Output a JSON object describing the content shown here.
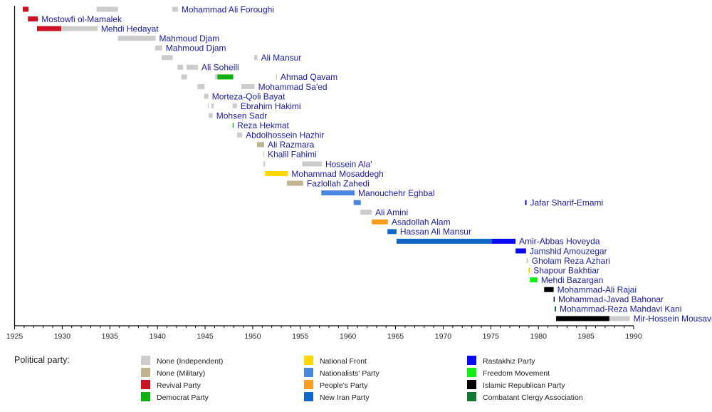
{
  "chart_data": {
    "type": "timeline",
    "xlim": [
      1925,
      1990
    ],
    "x_ticks": [
      1925,
      1930,
      1935,
      1940,
      1945,
      1950,
      1955,
      1960,
      1965,
      1970,
      1975,
      1980,
      1985,
      1990
    ],
    "minor_tick_step": 1,
    "legend_title": "Political party:",
    "legend_placement": "bottom",
    "parties": [
      {
        "key": "ind",
        "name": "None (Independent)",
        "color": "#cccccc"
      },
      {
        "key": "mil",
        "name": "None (Military)",
        "color": "#c2b28f"
      },
      {
        "key": "rev",
        "name": "Revival Party",
        "color": "#cc1122"
      },
      {
        "key": "dem",
        "name": "Democrat Party",
        "color": "#11b011"
      },
      {
        "key": "nf",
        "name": "National Front",
        "color": "#ffd700"
      },
      {
        "key": "nat",
        "name": "Nationalists' Party",
        "color": "#4a86e0"
      },
      {
        "key": "ppl",
        "name": "People's Party",
        "color": "#ff9d22"
      },
      {
        "key": "nip",
        "name": "New Iran Party",
        "color": "#1166c8"
      },
      {
        "key": "ras",
        "name": "Rastakhiz Party",
        "color": "#0a0aee"
      },
      {
        "key": "fm",
        "name": "Freedom Movement",
        "color": "#11ee11"
      },
      {
        "key": "irp",
        "name": "Islamic Republican Party",
        "color": "#000000"
      },
      {
        "key": "cca",
        "name": "Combatant Clergy Association",
        "color": "#117733"
      }
    ],
    "rows": [
      {
        "name": "Mohammad Ali Foroughi",
        "terms": [
          [
            1925.86,
            1926.46,
            "rev"
          ],
          [
            1933.6,
            1935.85,
            "ind"
          ],
          [
            1941.55,
            1942.15,
            "ind"
          ]
        ]
      },
      {
        "name": "Mostowfi ol-Mamalek",
        "terms": [
          [
            1926.4,
            1927.45,
            "rev"
          ]
        ]
      },
      {
        "name": "Mehdi Hedayat",
        "terms": [
          [
            1927.35,
            1929.9,
            "rev"
          ],
          [
            1929.9,
            1933.7,
            "ind"
          ]
        ]
      },
      {
        "name": "Mahmoud Djam",
        "terms": [
          [
            1935.85,
            1939.8,
            "ind"
          ]
        ]
      },
      {
        "name": "Mahmoud Djam",
        "terms": [
          [
            1939.75,
            1940.5,
            "ind"
          ]
        ]
      },
      {
        "name": "Ali Mansur",
        "terms": [
          [
            1940.45,
            1941.6,
            "ind"
          ],
          [
            1950.15,
            1950.5,
            "ind"
          ]
        ]
      },
      {
        "name": "Ali Soheili",
        "terms": [
          [
            1942.1,
            1942.7,
            "ind"
          ],
          [
            1943.05,
            1944.25,
            "ind"
          ]
        ]
      },
      {
        "name": "Ahmad Qavam",
        "terms": [
          [
            1942.5,
            1943.1,
            "ind"
          ],
          [
            1946.05,
            1946.3,
            "ind"
          ],
          [
            1946.3,
            1947.95,
            "dem"
          ],
          [
            1952.45,
            1952.55,
            "ind"
          ]
        ]
      },
      {
        "name": "Mohammad Sa'ed",
        "terms": [
          [
            1944.2,
            1944.95,
            "ind"
          ],
          [
            1948.8,
            1950.2,
            "ind"
          ]
        ]
      },
      {
        "name": "Morteza-Qoli Bayat",
        "terms": [
          [
            1944.9,
            1945.35,
            "ind"
          ]
        ]
      },
      {
        "name": "Ebrahim Hakimi",
        "terms": [
          [
            1945.28,
            1945.38,
            "ind"
          ],
          [
            1945.65,
            1945.9,
            "ind"
          ],
          [
            1947.9,
            1948.35,
            "ind"
          ]
        ]
      },
      {
        "name": "Mohsen Sadr",
        "terms": [
          [
            1945.38,
            1945.8,
            "ind"
          ]
        ]
      },
      {
        "name": "Reza Hekmat",
        "terms": [
          [
            1947.9,
            1948.0,
            "dem"
          ]
        ]
      },
      {
        "name": "Abdolhossein Hazhir",
        "terms": [
          [
            1948.35,
            1948.9,
            "ind"
          ]
        ]
      },
      {
        "name": "Ali Razmara",
        "terms": [
          [
            1950.45,
            1951.2,
            "mil"
          ]
        ]
      },
      {
        "name": "Khalil Fahimi",
        "terms": [
          [
            1951.12,
            1951.2,
            "ind"
          ]
        ]
      },
      {
        "name": "Hossein Ala'",
        "terms": [
          [
            1951.13,
            1951.3,
            "ind"
          ],
          [
            1955.2,
            1957.25,
            "ind"
          ]
        ]
      },
      {
        "name": "Mohammad Mosaddegh",
        "terms": [
          [
            1951.3,
            1953.7,
            "nf"
          ]
        ]
      },
      {
        "name": "Fazlollah Zahedi",
        "terms": [
          [
            1953.6,
            1955.3,
            "mil"
          ]
        ]
      },
      {
        "name": "Manouchehr Eghbal",
        "terms": [
          [
            1957.2,
            1960.7,
            "nat"
          ]
        ]
      },
      {
        "name": "Jafar Sharif-Emami",
        "terms": [
          [
            1960.6,
            1961.35,
            "nat"
          ],
          [
            1978.6,
            1978.75,
            "ras"
          ]
        ]
      },
      {
        "name": "Ali Amini",
        "terms": [
          [
            1961.3,
            1962.5,
            "ind"
          ]
        ]
      },
      {
        "name": "Asadollah Alam",
        "terms": [
          [
            1962.5,
            1964.2,
            "ppl"
          ]
        ]
      },
      {
        "name": "Hassan Ali Mansur",
        "terms": [
          [
            1964.15,
            1965.1,
            "nip"
          ]
        ]
      },
      {
        "name": "Amir-Abbas Hoveyda",
        "terms": [
          [
            1965.1,
            1975.1,
            "nip"
          ],
          [
            1975.1,
            1977.6,
            "ras"
          ]
        ]
      },
      {
        "name": "Jamshid Amouzegar",
        "terms": [
          [
            1977.6,
            1978.7,
            "ras"
          ]
        ]
      },
      {
        "name": "Gholam Reza Azhari",
        "terms": [
          [
            1978.75,
            1978.92,
            "ind"
          ]
        ]
      },
      {
        "name": "Shapour Bakhtiar",
        "terms": [
          [
            1978.95,
            1979.1,
            "nf"
          ]
        ]
      },
      {
        "name": "Mehdi Bazargan",
        "terms": [
          [
            1979.1,
            1979.9,
            "fm"
          ]
        ]
      },
      {
        "name": "Mohammad-Ali Rajai",
        "terms": [
          [
            1980.6,
            1981.6,
            "irp"
          ]
        ]
      },
      {
        "name": "Mohammad-Javad Bahonar",
        "terms": [
          [
            1981.6,
            1981.7,
            "irp"
          ]
        ]
      },
      {
        "name": "Mohammad-Reza Mahdavi Kani",
        "terms": [
          [
            1981.7,
            1981.85,
            "cca"
          ]
        ]
      },
      {
        "name": "Mir-Hossein Mousavi",
        "terms": [
          [
            1981.85,
            1987.45,
            "irp"
          ],
          [
            1987.45,
            1989.6,
            "ind"
          ]
        ]
      }
    ]
  }
}
